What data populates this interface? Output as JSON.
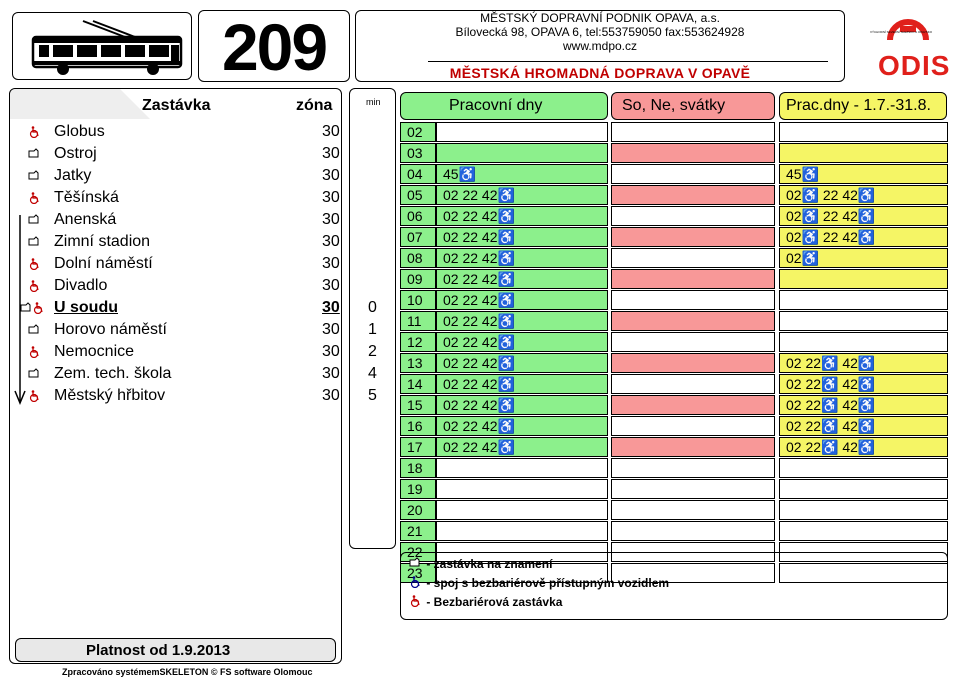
{
  "header": {
    "line_number": "209",
    "company_name": "MĚSTSKÝ DOPRAVNÍ PODNIK OPAVA, a.s.",
    "company_address": "Bílovecká 98, OPAVA 6,  tel:553759050  fax:553624928",
    "company_web": "www.mdpo.cz",
    "title": "MĚSTSKÁ HROMADNÁ DOPRAVA V OPAVĚ",
    "logo_small_text": "VÝCHODNÍ SEVERNÍ SLEZSKO A OPAVSKO",
    "logo_text": "ODIS"
  },
  "stops_header": {
    "stop": "Zastávka",
    "zone": "zóna",
    "min": "min"
  },
  "stops": [
    {
      "name": "Globus",
      "zone": "30",
      "min": "",
      "icon": "barrier-free-stop"
    },
    {
      "name": "Ostroj",
      "zone": "30",
      "min": "",
      "icon": "request-stop"
    },
    {
      "name": "Jatky",
      "zone": "30",
      "min": "",
      "icon": "request-stop"
    },
    {
      "name": "Těšínská",
      "zone": "30",
      "min": "",
      "icon": "barrier-free-stop"
    },
    {
      "name": "Anenská",
      "zone": "30",
      "min": "",
      "icon": "request-stop"
    },
    {
      "name": "Zimní stadion",
      "zone": "30",
      "min": "",
      "icon": "request-stop"
    },
    {
      "name": "Dolní náměstí",
      "zone": "30",
      "min": "",
      "icon": "barrier-free-stop"
    },
    {
      "name": "Divadlo",
      "zone": "30",
      "min": "",
      "icon": "barrier-free-stop"
    },
    {
      "name": "U soudu",
      "zone": "30",
      "min": "0",
      "icon": "request-and-barrier-free",
      "current": true
    },
    {
      "name": "Horovo náměstí",
      "zone": "30",
      "min": "1",
      "icon": "request-stop"
    },
    {
      "name": "Nemocnice",
      "zone": "30",
      "min": "2",
      "icon": "barrier-free-stop"
    },
    {
      "name": "Zem. tech. škola",
      "zone": "30",
      "min": "4",
      "icon": "request-stop"
    },
    {
      "name": "Městský hřbitov",
      "zone": "30",
      "min": "5",
      "icon": "barrier-free-stop"
    }
  ],
  "columns": {
    "weekday": "Pracovní dny",
    "weekend": "So, Ne, svátky",
    "summer": "Prac.dny - 1.7.-31.8."
  },
  "timetable": [
    {
      "hour": "02",
      "weekday": "",
      "weekend": "",
      "summer": ""
    },
    {
      "hour": "03",
      "weekday": "",
      "weekend": "",
      "summer": ""
    },
    {
      "hour": "04",
      "weekday": "45♿",
      "weekend": "",
      "summer": "45♿"
    },
    {
      "hour": "05",
      "weekday": "02 22 42♿",
      "weekend": "",
      "summer": "02♿ 22 42♿"
    },
    {
      "hour": "06",
      "weekday": "02 22 42♿",
      "weekend": "",
      "summer": "02♿ 22 42♿"
    },
    {
      "hour": "07",
      "weekday": "02 22 42♿",
      "weekend": "",
      "summer": "02♿ 22 42♿"
    },
    {
      "hour": "08",
      "weekday": "02 22 42♿",
      "weekend": "",
      "summer": "02♿"
    },
    {
      "hour": "09",
      "weekday": "02 22 42♿",
      "weekend": "",
      "summer": ""
    },
    {
      "hour": "10",
      "weekday": "02 22 42♿",
      "weekend": "",
      "summer": ""
    },
    {
      "hour": "11",
      "weekday": "02 22 42♿",
      "weekend": "",
      "summer": ""
    },
    {
      "hour": "12",
      "weekday": "02 22 42♿",
      "weekend": "",
      "summer": ""
    },
    {
      "hour": "13",
      "weekday": "02 22 42♿",
      "weekend": "",
      "summer": "02 22♿ 42♿"
    },
    {
      "hour": "14",
      "weekday": "02 22 42♿",
      "weekend": "",
      "summer": "02 22♿ 42♿"
    },
    {
      "hour": "15",
      "weekday": "02 22 42♿",
      "weekend": "",
      "summer": "02 22♿ 42♿"
    },
    {
      "hour": "16",
      "weekday": "02 22 42♿",
      "weekend": "",
      "summer": "02 22♿ 42♿"
    },
    {
      "hour": "17",
      "weekday": "02 22 42♿",
      "weekend": "",
      "summer": "02 22♿ 42♿"
    },
    {
      "hour": "18",
      "weekday": "",
      "weekend": "",
      "summer": ""
    },
    {
      "hour": "19",
      "weekday": "",
      "weekend": "",
      "summer": ""
    },
    {
      "hour": "20",
      "weekday": "",
      "weekend": "",
      "summer": ""
    },
    {
      "hour": "21",
      "weekday": "",
      "weekend": "",
      "summer": ""
    },
    {
      "hour": "22",
      "weekday": "",
      "weekend": "",
      "summer": ""
    },
    {
      "hour": "23",
      "weekday": "",
      "weekend": "",
      "summer": ""
    }
  ],
  "legend": {
    "request": "- zastávka na znamení",
    "vehicle": "- spoj s bezbariérově přístupným vozidlem",
    "stop": "- Bezbariérová zastávka"
  },
  "validity": "Platnost od 1.9.2013",
  "footer": "Zpracováno systémemSKELETON © FS software Olomouc",
  "colors": {
    "green": "#8cf08c",
    "red": "#f89898",
    "yellow": "#f5f565",
    "odis_red": "#e0201b"
  }
}
